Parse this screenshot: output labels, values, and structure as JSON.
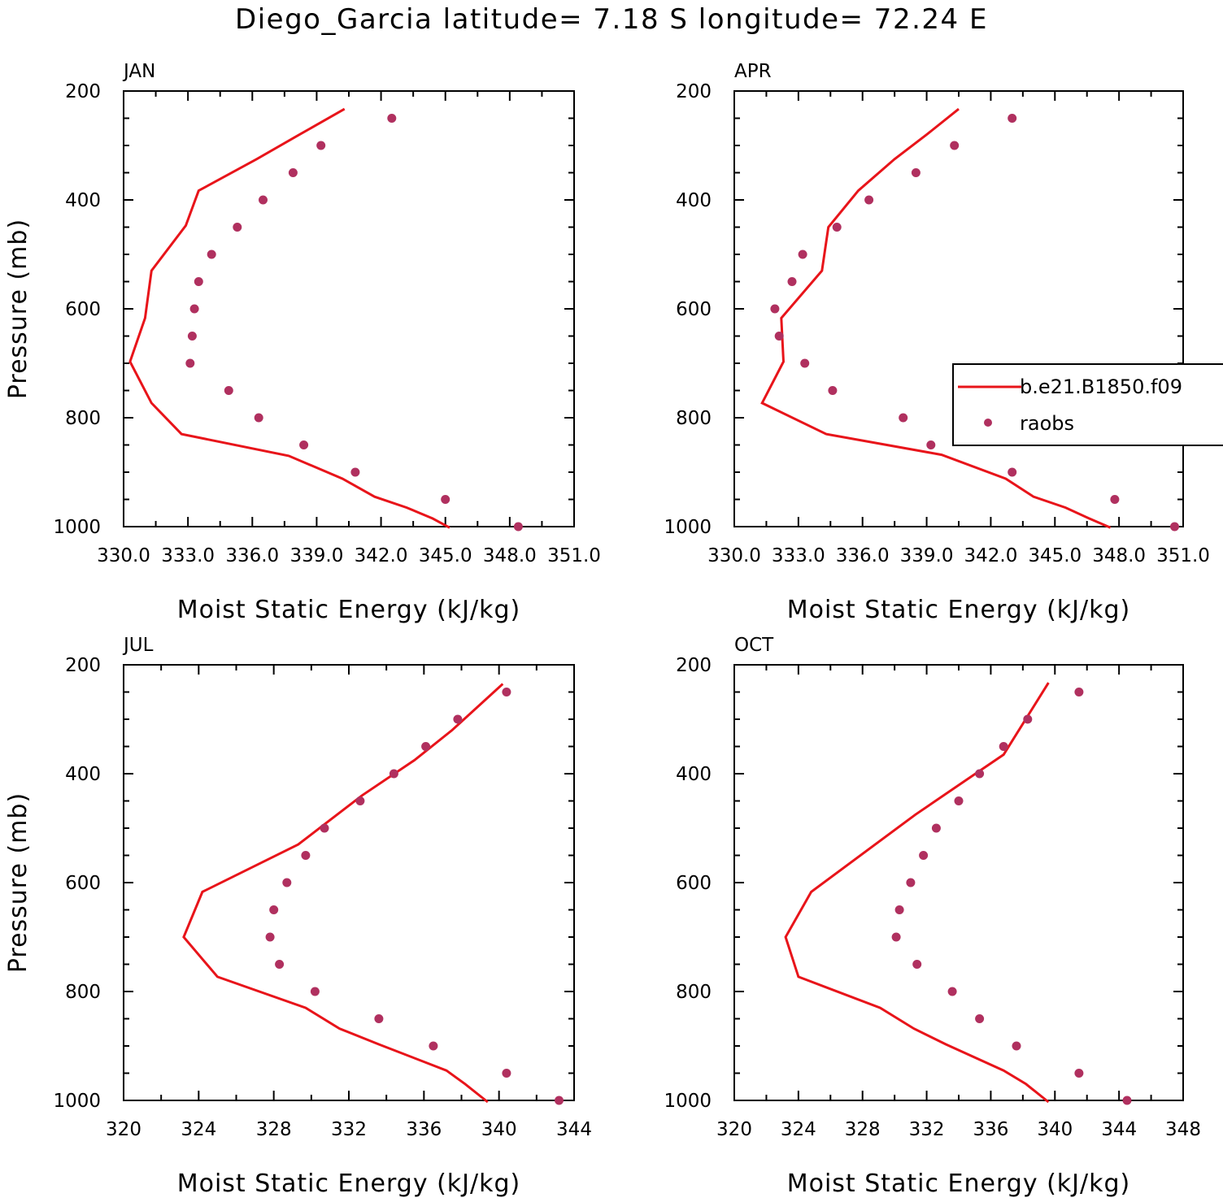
{
  "figure_title": "Diego_Garcia  latitude= 7.18 S longitude= 72.24 E",
  "colors": {
    "model_line": "#e8141a",
    "obs_marker": "#b0305f",
    "axis": "#000000"
  },
  "legend": {
    "model_label": "b.e21.B1850.f09",
    "obs_label": "raobs"
  },
  "chart_data": [
    {
      "type": "line",
      "panel": "JAN",
      "xlabel": "Moist Static Energy (kJ/kg)",
      "ylabel": "Pressure (mb)",
      "xlim": [
        330.0,
        351.0
      ],
      "ylim": [
        200,
        1000
      ],
      "y_inverted": false,
      "xticks": [
        330,
        333,
        336,
        339,
        342,
        345,
        348,
        351
      ],
      "xtick_labels": [
        "330.0",
        "333.0",
        "336.0",
        "339.0",
        "342.0",
        "345.0",
        "348.0",
        "351.0"
      ],
      "yticks": [
        200,
        400,
        600,
        800,
        1000
      ],
      "series": [
        {
          "name": "b.e21.B1850.f09",
          "kind": "line",
          "x": [
            345.2,
            344.4,
            343.2,
            341.7,
            340.2,
            337.7,
            332.7,
            331.3,
            330.3,
            331.0,
            331.3,
            332.9,
            333.5,
            336.2,
            338.2,
            340.3
          ],
          "y": [
            1002,
            985,
            965,
            945,
            912,
            870,
            830,
            773,
            697,
            617,
            530,
            447,
            383,
            325,
            280,
            233
          ]
        },
        {
          "name": "raobs",
          "kind": "scatter",
          "x": [
            348.4,
            345.0,
            340.8,
            338.4,
            336.3,
            334.9,
            333.1,
            333.2,
            333.3,
            333.5,
            334.1,
            335.3,
            336.5,
            337.9,
            339.2,
            342.5
          ],
          "y": [
            1000,
            950,
            900,
            850,
            800,
            750,
            700,
            650,
            600,
            550,
            500,
            450,
            400,
            350,
            300,
            250
          ]
        }
      ]
    },
    {
      "type": "line",
      "panel": "APR",
      "xlabel": "Moist Static Energy (kJ/kg)",
      "ylabel": "",
      "xlim": [
        330.0,
        351.0
      ],
      "ylim": [
        200,
        1000
      ],
      "y_inverted": false,
      "xticks": [
        330,
        333,
        336,
        339,
        342,
        345,
        348,
        351
      ],
      "xtick_labels": [
        "330.0",
        "333.0",
        "336.0",
        "339.0",
        "342.0",
        "345.0",
        "348.0",
        "351.0"
      ],
      "yticks": [
        200,
        400,
        600,
        800,
        1000
      ],
      "series": [
        {
          "name": "b.e21.B1850.f09",
          "kind": "line",
          "x": [
            347.6,
            346.6,
            345.5,
            344.0,
            342.7,
            339.7,
            334.3,
            331.3,
            332.3,
            332.2,
            334.1,
            334.4,
            335.8,
            337.5,
            339.0,
            340.5
          ],
          "y": [
            1002,
            985,
            965,
            945,
            912,
            868,
            830,
            773,
            697,
            617,
            530,
            450,
            383,
            325,
            280,
            233
          ]
        },
        {
          "name": "raobs",
          "kind": "scatter",
          "x": [
            350.6,
            347.8,
            343.0,
            339.2,
            337.9,
            334.6,
            333.3,
            332.1,
            331.9,
            332.7,
            333.2,
            334.8,
            336.3,
            338.5,
            340.3,
            343.0
          ],
          "y": [
            1000,
            950,
            900,
            850,
            800,
            750,
            700,
            650,
            600,
            550,
            500,
            450,
            400,
            350,
            300,
            250
          ]
        }
      ]
    },
    {
      "type": "line",
      "panel": "JUL",
      "xlabel": "Moist Static Energy (kJ/kg)",
      "ylabel": "Pressure (mb)",
      "xlim": [
        320,
        344
      ],
      "ylim": [
        200,
        1000
      ],
      "y_inverted": false,
      "xticks": [
        320,
        324,
        328,
        332,
        336,
        340,
        344
      ],
      "xtick_labels": [
        "320",
        "324",
        "328",
        "332",
        "336",
        "340",
        "344"
      ],
      "yticks": [
        200,
        400,
        600,
        800,
        1000
      ],
      "series": [
        {
          "name": "b.e21.B1850.f09",
          "kind": "line",
          "x": [
            339.4,
            338.2,
            337.2,
            333.6,
            331.5,
            329.7,
            325.0,
            323.2,
            324.2,
            329.3,
            332.7,
            335.5,
            337.5,
            340.2
          ],
          "y": [
            1003,
            970,
            945,
            897,
            868,
            830,
            773,
            700,
            617,
            530,
            440,
            375,
            320,
            235
          ]
        },
        {
          "name": "raobs",
          "kind": "scatter",
          "x": [
            343.2,
            340.4,
            336.5,
            333.6,
            330.2,
            328.3,
            327.8,
            328.0,
            328.7,
            329.7,
            330.7,
            332.6,
            334.4,
            336.1,
            337.8,
            340.4
          ],
          "y": [
            1000,
            950,
            900,
            850,
            800,
            750,
            700,
            650,
            600,
            550,
            500,
            450,
            400,
            350,
            300,
            250
          ]
        }
      ]
    },
    {
      "type": "line",
      "panel": "OCT",
      "xlabel": "Moist Static Energy (kJ/kg)",
      "ylabel": "",
      "xlim": [
        320,
        348
      ],
      "ylim": [
        200,
        1000
      ],
      "y_inverted": false,
      "xticks": [
        320,
        324,
        328,
        332,
        336,
        340,
        344,
        348
      ],
      "xtick_labels": [
        "320",
        "324",
        "328",
        "332",
        "336",
        "340",
        "344",
        "348"
      ],
      "yticks": [
        200,
        400,
        600,
        800,
        1000
      ],
      "series": [
        {
          "name": "b.e21.B1850.f09",
          "kind": "line",
          "x": [
            339.6,
            338.2,
            336.8,
            333.2,
            331.2,
            329.1,
            324.0,
            323.2,
            324.8,
            331.3,
            334.3,
            336.8,
            339.6
          ],
          "y": [
            1003,
            970,
            945,
            897,
            868,
            830,
            773,
            700,
            617,
            475,
            415,
            365,
            233
          ]
        },
        {
          "name": "raobs",
          "kind": "scatter",
          "x": [
            344.5,
            341.5,
            337.6,
            335.3,
            333.6,
            331.4,
            330.1,
            330.3,
            331.0,
            331.8,
            332.6,
            334.0,
            335.3,
            336.8,
            338.3,
            341.5
          ],
          "y": [
            1000,
            950,
            900,
            850,
            800,
            750,
            700,
            650,
            600,
            550,
            500,
            450,
            400,
            350,
            300,
            250
          ]
        }
      ]
    }
  ]
}
